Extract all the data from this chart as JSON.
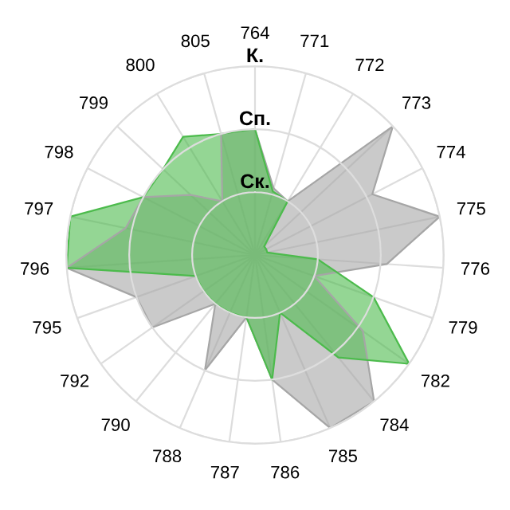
{
  "chart_data": {
    "type": "radar",
    "categories": [
      "764",
      "771",
      "772",
      "773",
      "774",
      "775",
      "776",
      "779",
      "782",
      "784",
      "785",
      "786",
      "787",
      "788",
      "790",
      "792",
      "795",
      "796",
      "797",
      "798",
      "799",
      "800",
      "805"
    ],
    "ylim": [
      0,
      3
    ],
    "yticks": [
      {
        "value": 1,
        "label": "Ск."
      },
      {
        "value": 2,
        "label": "Сп."
      },
      {
        "value": 3,
        "label": "К."
      }
    ],
    "grid": true,
    "series": [
      {
        "color": "#a6a6a6",
        "values": [
          2.0,
          1.1,
          1.0,
          3.0,
          2.1,
          3.0,
          2.1,
          1.0,
          2.1,
          3.0,
          3.0,
          2.0,
          1.0,
          2.0,
          1.0,
          2.0,
          2.0,
          3.0,
          2.1,
          2.0,
          1.4,
          1.0,
          2.0
        ]
      },
      {
        "color": "#4cbb4c",
        "values": [
          2.0,
          1.05,
          1.0,
          0.2,
          0.2,
          0.2,
          1.0,
          2.0,
          3.0,
          2.1,
          1.0,
          2.0,
          1.0,
          1.0,
          1.0,
          1.0,
          1.0,
          3.0,
          3.0,
          2.0,
          2.0,
          2.2,
          2.0
        ]
      }
    ]
  }
}
